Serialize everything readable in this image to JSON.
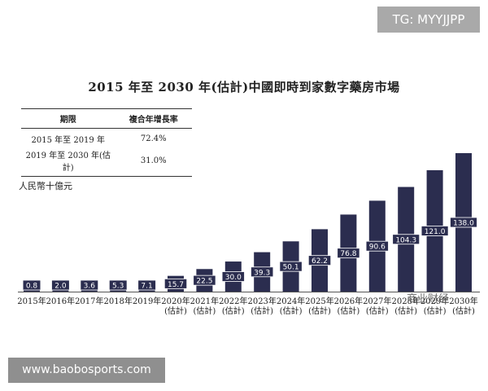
{
  "watermark_top": "TG: MYYJJPP",
  "watermark_bottom": "www.baobosports.com",
  "watermark_overlay": "商业财经",
  "cagr_table": {
    "header_period": "期限",
    "header_rate": "複合年增長率",
    "rows": [
      {
        "period": "2015 年至 2019 年",
        "rate": "72.4%"
      },
      {
        "period": "2019 年至 2030 年(估計)",
        "rate": "31.0%"
      }
    ]
  },
  "colors": {
    "bar": "#2b2d4f",
    "label_text": "#ffffff"
  },
  "chart_data": {
    "type": "bar",
    "title": "2015 年至 2030 年(估計)中國即時到家數字藥房市場",
    "ylabel": "人民幣十億元",
    "categories": [
      "2015年",
      "2016年",
      "2017年",
      "2018年",
      "2019年",
      "2020年(估計)",
      "2021年(估計)",
      "2022年(估計)",
      "2023年(估計)",
      "2024年(估計)",
      "2025年(估計)",
      "2026年(估計)",
      "2027年(估計)",
      "2028年(估計)",
      "2029年(估計)",
      "2030年(估計)"
    ],
    "x_label_lines": [
      [
        "2015年"
      ],
      [
        "2016年"
      ],
      [
        "2017年"
      ],
      [
        "2018年"
      ],
      [
        "2019年"
      ],
      [
        "2020年",
        "(估計)"
      ],
      [
        "2021年",
        "(估計)"
      ],
      [
        "2022年",
        "(估計)"
      ],
      [
        "2023年",
        "(估計)"
      ],
      [
        "2024年",
        "(估計)"
      ],
      [
        "2025年",
        "(估計)"
      ],
      [
        "2026年",
        "(估計)"
      ],
      [
        "2027年",
        "(估計)"
      ],
      [
        "2028年",
        "(估計)"
      ],
      [
        "2029年",
        "(估計)"
      ],
      [
        "2030年",
        "(估計)"
      ]
    ],
    "values": [
      0.8,
      2.0,
      3.6,
      5.3,
      7.1,
      15.7,
      22.5,
      30.0,
      39.3,
      50.1,
      62.2,
      76.8,
      90.6,
      104.3,
      121.0,
      138.0
    ],
    "value_labels": [
      "0.8",
      "2.0",
      "3.6",
      "5.3",
      "7.1",
      "15.7",
      "22.5",
      "30.0",
      "39.3",
      "50.1",
      "62.2",
      "76.8",
      "90.6",
      "104.3",
      "121.0",
      "138.0"
    ],
    "ylim": [
      0,
      138.0
    ],
    "grid": false,
    "legend": "none"
  }
}
